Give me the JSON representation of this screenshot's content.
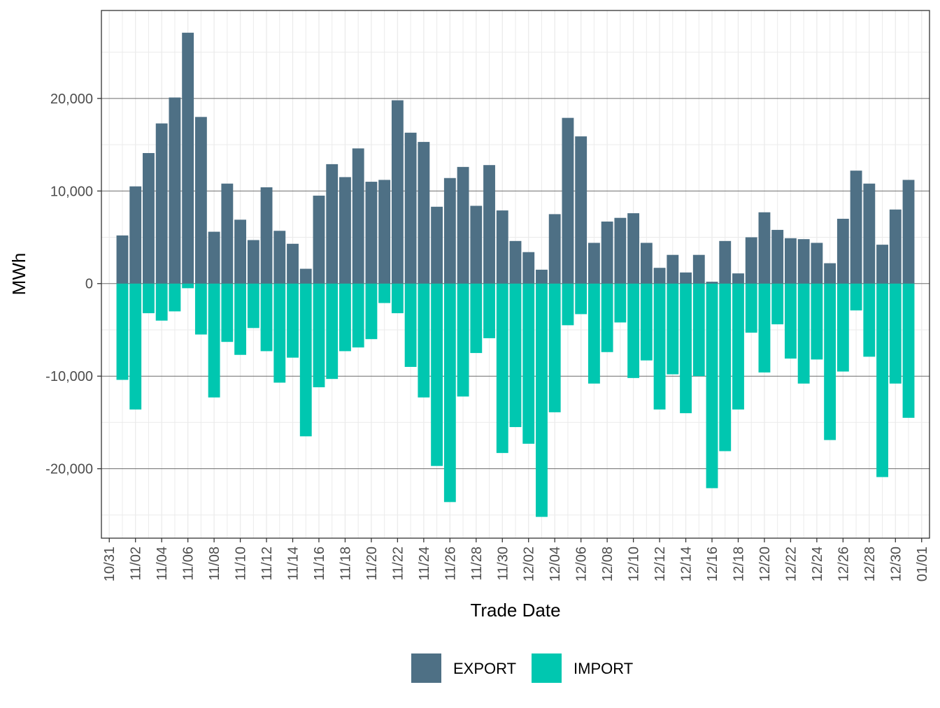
{
  "chart_data": {
    "type": "bar",
    "stacked": true,
    "xlabel": "Trade Date",
    "ylabel": "MWh",
    "ylim": [
      -27500,
      29500
    ],
    "y_ticks": [
      -20000,
      -10000,
      0,
      10000,
      20000
    ],
    "y_tick_labels": [
      "-20,000",
      "-10,000",
      "0",
      "10,000",
      "20,000"
    ],
    "x_tick_labels": [
      "10/31",
      "11/02",
      "11/04",
      "11/06",
      "11/08",
      "11/10",
      "11/12",
      "11/14",
      "11/16",
      "11/18",
      "11/20",
      "11/22",
      "11/24",
      "11/26",
      "11/28",
      "11/30",
      "12/02",
      "12/04",
      "12/06",
      "12/08",
      "12/10",
      "12/12",
      "12/14",
      "12/16",
      "12/18",
      "12/20",
      "12/22",
      "12/24",
      "12/26",
      "12/28",
      "12/30",
      "01/01"
    ],
    "grid": true,
    "legend_position": "bottom",
    "categories": [
      "11/01",
      "11/02",
      "11/03",
      "11/04",
      "11/05",
      "11/06",
      "11/07",
      "11/08",
      "11/09",
      "11/10",
      "11/11",
      "11/12",
      "11/13",
      "11/14",
      "11/15",
      "11/16",
      "11/17",
      "11/18",
      "11/19",
      "11/20",
      "11/21",
      "11/22",
      "11/23",
      "11/24",
      "11/25",
      "11/26",
      "11/27",
      "11/28",
      "11/29",
      "11/30",
      "12/01",
      "12/02",
      "12/03",
      "12/04",
      "12/05",
      "12/06",
      "12/07",
      "12/08",
      "12/09",
      "12/10",
      "12/11",
      "12/12",
      "12/13",
      "12/14",
      "12/15",
      "12/16",
      "12/17",
      "12/18",
      "12/19",
      "12/20",
      "12/21",
      "12/22",
      "12/23",
      "12/24",
      "12/25",
      "12/26",
      "12/27",
      "12/28",
      "12/29",
      "12/30",
      "12/31"
    ],
    "series": [
      {
        "name": "EXPORT",
        "color": "#4e7085",
        "values": [
          5200,
          10500,
          14100,
          17300,
          20100,
          27100,
          18000,
          5600,
          10800,
          6900,
          4700,
          10400,
          5700,
          4300,
          1600,
          9500,
          12900,
          11500,
          14600,
          11000,
          11200,
          19800,
          16300,
          15300,
          8300,
          11400,
          12600,
          8400,
          12800,
          7900,
          4600,
          3400,
          1500,
          7500,
          17900,
          15900,
          4400,
          6700,
          7100,
          7600,
          4400,
          1700,
          3100,
          1200,
          3100,
          200,
          4600,
          1100,
          5000,
          7700,
          5800,
          4900,
          4800,
          4400,
          2200,
          7000,
          12200,
          10800,
          4200,
          8000,
          11200
        ]
      },
      {
        "name": "IMPORT",
        "color": "#00c7b0",
        "values": [
          -10400,
          -13600,
          -3200,
          -4000,
          -3000,
          -500,
          -5500,
          -12300,
          -6300,
          -7700,
          -4800,
          -7300,
          -10700,
          -8000,
          -16500,
          -11200,
          -10300,
          -7300,
          -6900,
          -6000,
          -2100,
          -3200,
          -9000,
          -12300,
          -19700,
          -23600,
          -12200,
          -7500,
          -5900,
          -18300,
          -15500,
          -17300,
          -25200,
          -13900,
          -4500,
          -3300,
          -10800,
          -7400,
          -4200,
          -10200,
          -8300,
          -13600,
          -9800,
          -14000,
          -10000,
          -22100,
          -18100,
          -13600,
          -5300,
          -9600,
          -4400,
          -8100,
          -10800,
          -8200,
          -16900,
          -9500,
          -2900,
          -7900,
          -20900,
          -10800,
          -14500
        ]
      }
    ]
  }
}
